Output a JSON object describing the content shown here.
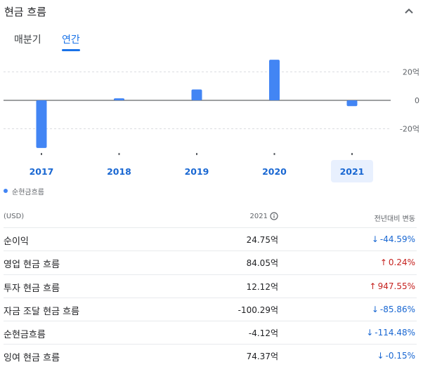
{
  "header": {
    "title": "현금 흐름"
  },
  "tabs": [
    {
      "label": "매분기",
      "active": false
    },
    {
      "label": "연간",
      "active": true
    }
  ],
  "chart_data": {
    "type": "bar",
    "categories": [
      "2017",
      "2018",
      "2019",
      "2020",
      "2021"
    ],
    "series": [
      {
        "name": "순현금흐름",
        "values": [
          -33.5,
          1.4,
          7.6,
          28.5,
          -4.12
        ],
        "color": "#4285f4"
      }
    ],
    "y_ticks": [
      {
        "value": 20,
        "label": "20억"
      },
      {
        "value": 0,
        "label": "0"
      },
      {
        "value": -20,
        "label": "-20억"
      }
    ],
    "ylim": [
      -36,
      32
    ],
    "selected_category": "2021",
    "grid": true
  },
  "legend": {
    "label": "순현금흐름"
  },
  "table": {
    "currency": "(USD)",
    "year": "2021",
    "change_header": "전년대비 변동",
    "rows": [
      {
        "label": "순이익",
        "value": "24.75억",
        "change": "-44.59%",
        "direction": "down"
      },
      {
        "label": "영업 현금 흐름",
        "value": "84.05억",
        "change": "0.24%",
        "direction": "up"
      },
      {
        "label": "투자 현금 흐름",
        "value": "12.12억",
        "change": "947.55%",
        "direction": "up"
      },
      {
        "label": "자금 조달 현금 흐름",
        "value": "-100.29억",
        "change": "-85.86%",
        "direction": "down"
      },
      {
        "label": "순현금흐름",
        "value": "-4.12억",
        "change": "-114.48%",
        "direction": "down"
      },
      {
        "label": "잉여 현금 흐름",
        "value": "74.37억",
        "change": "-0.15%",
        "direction": "down"
      }
    ]
  },
  "colors": {
    "accent": "#1a73e8",
    "bar": "#4285f4",
    "up": "#c5221f",
    "down": "#1967d2",
    "selected_bg": "#e8f0fe"
  },
  "icons": {
    "collapse": "chevron-up-icon",
    "info": "info-icon",
    "up": "arrow-up-icon",
    "down": "arrow-down-icon"
  }
}
